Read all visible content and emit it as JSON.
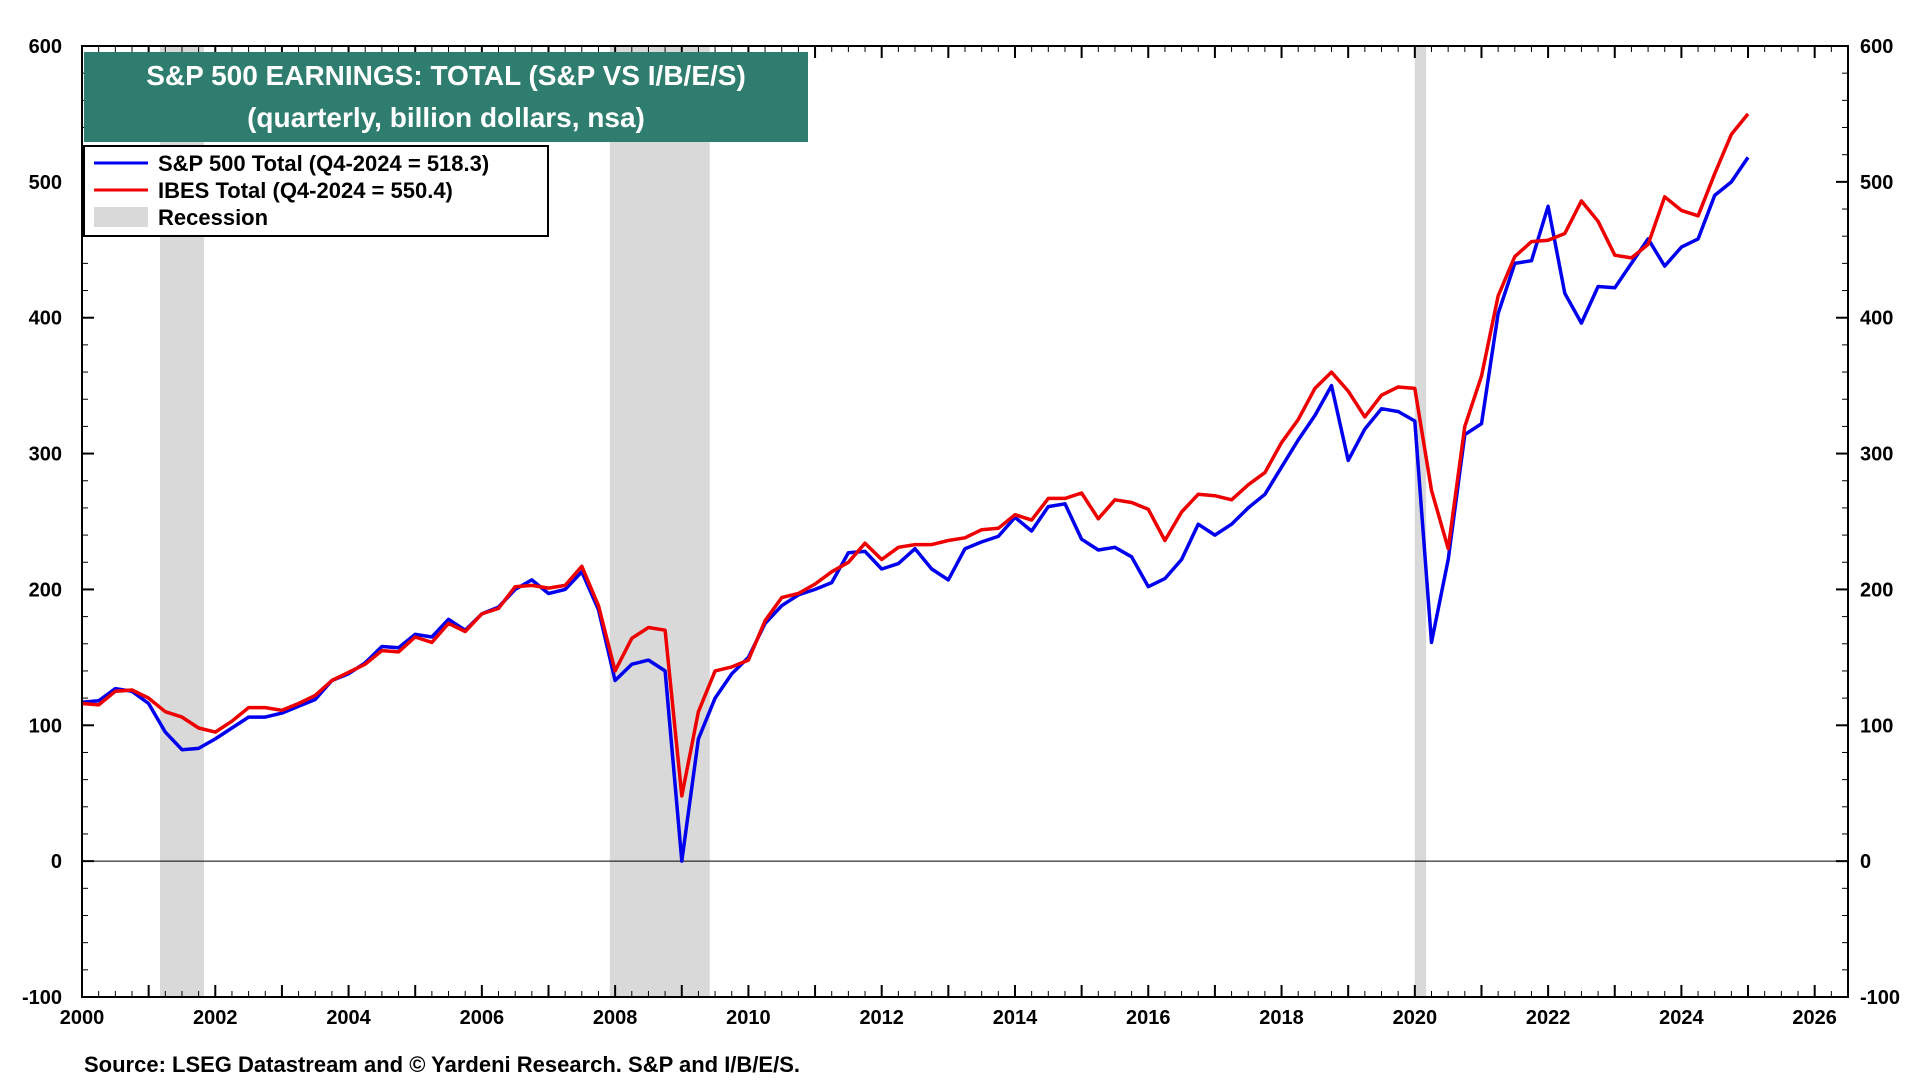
{
  "chart_data": {
    "type": "line",
    "title": "S&P 500 EARNINGS: TOTAL (S&P VS I/B/E/S)",
    "subtitle": "(quarterly, billion dollars, nsa)",
    "source": "Source: LSEG Datastream and © Yardeni Research. S&P and I/B/E/S.",
    "xlim": [
      2000,
      2026.5
    ],
    "ylim": [
      -100,
      600
    ],
    "x_ticks": [
      2000,
      2002,
      2004,
      2006,
      2008,
      2010,
      2012,
      2014,
      2016,
      2018,
      2020,
      2022,
      2024,
      2026
    ],
    "x_tick_labels": [
      "2000",
      "2002",
      "2004",
      "2006",
      "2008",
      "2010",
      "2012",
      "2014",
      "2016",
      "2018",
      "2020",
      "2022",
      "2024",
      "2026"
    ],
    "y_ticks": [
      -100,
      0,
      100,
      200,
      300,
      400,
      500,
      600
    ],
    "y_tick_labels": [
      "-100",
      "0",
      "100",
      "200",
      "300",
      "400",
      "500",
      "600"
    ],
    "legend_position": "top-left",
    "recessions": [
      {
        "start": 2001.17,
        "end": 2001.83
      },
      {
        "start": 2007.92,
        "end": 2009.42
      },
      {
        "start": 2020.0,
        "end": 2020.17
      }
    ],
    "recession_label": "Recession",
    "recession_color": "#d9d9d9",
    "x": [
      2000.0,
      2000.25,
      2000.5,
      2000.75,
      2001.0,
      2001.25,
      2001.5,
      2001.75,
      2002.0,
      2002.25,
      2002.5,
      2002.75,
      2003.0,
      2003.25,
      2003.5,
      2003.75,
      2004.0,
      2004.25,
      2004.5,
      2004.75,
      2005.0,
      2005.25,
      2005.5,
      2005.75,
      2006.0,
      2006.25,
      2006.5,
      2006.75,
      2007.0,
      2007.25,
      2007.5,
      2007.75,
      2008.0,
      2008.25,
      2008.5,
      2008.75,
      2009.0,
      2009.25,
      2009.5,
      2009.75,
      2010.0,
      2010.25,
      2010.5,
      2010.75,
      2011.0,
      2011.25,
      2011.5,
      2011.75,
      2012.0,
      2012.25,
      2012.5,
      2012.75,
      2013.0,
      2013.25,
      2013.5,
      2013.75,
      2014.0,
      2014.25,
      2014.5,
      2014.75,
      2015.0,
      2015.25,
      2015.5,
      2015.75,
      2016.0,
      2016.25,
      2016.5,
      2016.75,
      2017.0,
      2017.25,
      2017.5,
      2017.75,
      2018.0,
      2018.25,
      2018.5,
      2018.75,
      2019.0,
      2019.25,
      2019.5,
      2019.75,
      2020.0,
      2020.25,
      2020.5,
      2020.75,
      2021.0,
      2021.25,
      2021.5,
      2021.75,
      2022.0,
      2022.25,
      2022.5,
      2022.75,
      2023.0,
      2023.25,
      2023.5,
      2023.75,
      2024.0,
      2024.25,
      2024.5,
      2024.75,
      2025.0
    ],
    "series": [
      {
        "name": "S&P 500 Total (Q4-2024 = 518.3)",
        "color": "#0000ee",
        "values": [
          117,
          118,
          127,
          125,
          116,
          95,
          82,
          83,
          90,
          98,
          106,
          106,
          109,
          114,
          119,
          133,
          138,
          146,
          158,
          157,
          167,
          165,
          178,
          170,
          182,
          187,
          200,
          207,
          197,
          200,
          213,
          185,
          133,
          145,
          148,
          140,
          0,
          90,
          120,
          138,
          150,
          175,
          188,
          196,
          200,
          205,
          227,
          228,
          215,
          219,
          230,
          215,
          207,
          230,
          235,
          239,
          253,
          243,
          261,
          263,
          237,
          229,
          231,
          224,
          202,
          208,
          222,
          248,
          240,
          248,
          260,
          270,
          290,
          310,
          328,
          350,
          295,
          318,
          333,
          331,
          324,
          161,
          222,
          314,
          322,
          403,
          440,
          442,
          482,
          418,
          396,
          423,
          422,
          440,
          458,
          438,
          452,
          458,
          490,
          500,
          518
        ]
      },
      {
        "name": "IBES Total (Q4-2024 = 550.4)",
        "color": "#ee0000",
        "values": [
          116,
          115,
          125,
          126,
          120,
          110,
          106,
          98,
          95,
          103,
          113,
          113,
          111,
          116,
          122,
          133,
          139,
          145,
          155,
          154,
          165,
          161,
          175,
          169,
          182,
          186,
          202,
          203,
          201,
          203,
          217,
          188,
          140,
          164,
          172,
          170,
          48,
          110,
          140,
          143,
          148,
          177,
          194,
          197,
          204,
          213,
          220,
          234,
          222,
          231,
          233,
          233,
          236,
          238,
          244,
          245,
          255,
          251,
          267,
          267,
          271,
          252,
          266,
          264,
          259,
          236,
          257,
          270,
          269,
          266,
          277,
          286,
          308,
          325,
          348,
          360,
          346,
          327,
          343,
          349,
          348,
          273,
          230,
          320,
          357,
          416,
          445,
          456,
          457,
          462,
          486,
          471,
          446,
          444,
          454,
          489,
          479,
          475,
          506,
          535,
          550
        ]
      }
    ]
  },
  "colors": {
    "title_bg": "#2e7d6e",
    "axis": "#000000",
    "zero_line": "#000000"
  }
}
